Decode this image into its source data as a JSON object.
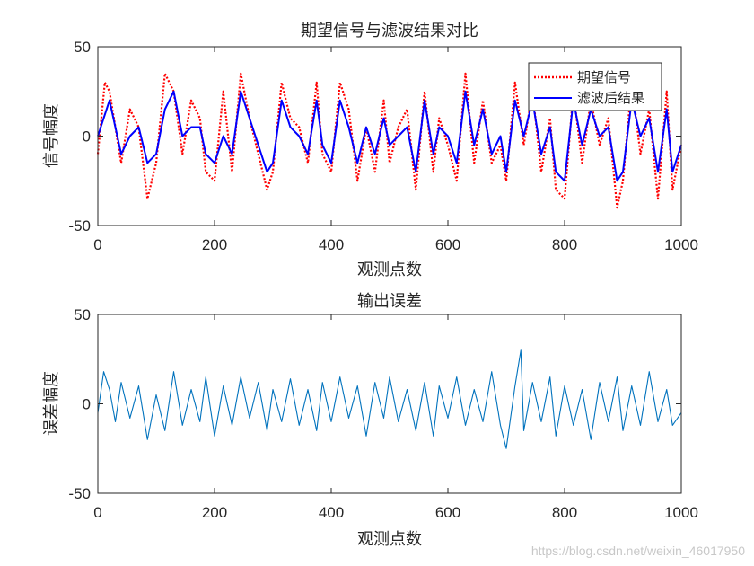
{
  "chart_data": [
    {
      "type": "line",
      "title": "期望信号与滤波结果对比",
      "xlabel": "观测点数",
      "ylabel": "信号幅度",
      "xlim": [
        0,
        1000
      ],
      "ylim": [
        -50,
        50
      ],
      "xticks": [
        "0",
        "200",
        "400",
        "600",
        "800",
        "1000"
      ],
      "yticks": [
        "-50",
        "0",
        "50"
      ],
      "xtick_values": [
        0,
        200,
        400,
        600,
        800,
        1000
      ],
      "ytick_values": [
        -50,
        0,
        50
      ],
      "legend_position": "top-right",
      "series": [
        {
          "name": "期望信号",
          "color": "#ff0000",
          "style": "dotted",
          "x": [
            0,
            12,
            20,
            30,
            40,
            55,
            70,
            85,
            100,
            115,
            130,
            145,
            160,
            175,
            185,
            200,
            215,
            230,
            245,
            260,
            275,
            290,
            300,
            315,
            330,
            345,
            360,
            375,
            385,
            400,
            415,
            430,
            445,
            460,
            475,
            490,
            500,
            515,
            530,
            545,
            560,
            575,
            585,
            600,
            615,
            630,
            645,
            660,
            675,
            690,
            700,
            715,
            730,
            745,
            760,
            775,
            785,
            800,
            815,
            830,
            845,
            860,
            875,
            890,
            900,
            915,
            930,
            945,
            960,
            975,
            985,
            1000
          ],
          "values": [
            -10,
            30,
            25,
            5,
            -15,
            15,
            5,
            -35,
            -15,
            35,
            25,
            -10,
            20,
            10,
            -20,
            -25,
            25,
            -20,
            35,
            10,
            -10,
            -30,
            -20,
            30,
            10,
            5,
            -15,
            30,
            -10,
            -20,
            30,
            15,
            -25,
            5,
            -20,
            20,
            -15,
            5,
            15,
            -30,
            25,
            -20,
            10,
            -5,
            -25,
            35,
            -15,
            20,
            -15,
            -5,
            -25,
            30,
            -5,
            25,
            -20,
            10,
            -30,
            -35,
            25,
            -15,
            20,
            -5,
            10,
            -40,
            -25,
            30,
            -10,
            15,
            -35,
            25,
            -30,
            -5
          ]
        },
        {
          "name": "滤波后结果",
          "color": "#0000ff",
          "style": "solid",
          "x": [
            0,
            10,
            20,
            30,
            40,
            55,
            70,
            85,
            100,
            115,
            130,
            145,
            160,
            175,
            185,
            200,
            215,
            230,
            245,
            260,
            275,
            290,
            300,
            315,
            330,
            345,
            360,
            375,
            385,
            400,
            415,
            430,
            445,
            460,
            475,
            490,
            500,
            515,
            530,
            545,
            560,
            575,
            585,
            600,
            615,
            630,
            645,
            660,
            675,
            690,
            700,
            715,
            730,
            745,
            760,
            775,
            785,
            800,
            815,
            830,
            845,
            860,
            875,
            890,
            900,
            915,
            930,
            945,
            960,
            975,
            985,
            1000
          ],
          "values": [
            0,
            10,
            20,
            5,
            -10,
            0,
            5,
            -15,
            -10,
            15,
            25,
            0,
            5,
            5,
            -10,
            -15,
            0,
            -10,
            25,
            10,
            -5,
            -20,
            -15,
            20,
            5,
            0,
            -10,
            20,
            -5,
            -15,
            20,
            5,
            -15,
            5,
            -10,
            10,
            -5,
            0,
            5,
            -20,
            20,
            -10,
            5,
            0,
            -15,
            25,
            -5,
            15,
            -10,
            0,
            -20,
            20,
            0,
            20,
            -10,
            5,
            -20,
            -25,
            20,
            -5,
            15,
            0,
            5,
            -25,
            -20,
            20,
            0,
            10,
            -20,
            15,
            -20,
            -5
          ]
        }
      ]
    },
    {
      "type": "line",
      "title": "输出误差",
      "xlabel": "观测点数",
      "ylabel": "误差幅度",
      "xlim": [
        0,
        1000
      ],
      "ylim": [
        -50,
        50
      ],
      "xticks": [
        "0",
        "200",
        "400",
        "600",
        "800",
        "1000"
      ],
      "yticks": [
        "-50",
        "0",
        "50"
      ],
      "xtick_values": [
        0,
        200,
        400,
        600,
        800,
        1000
      ],
      "ytick_values": [
        -50,
        0,
        50
      ],
      "series": [
        {
          "name": "误差",
          "color": "#0072bd",
          "style": "solid",
          "x": [
            0,
            10,
            20,
            30,
            40,
            55,
            70,
            85,
            100,
            115,
            130,
            145,
            160,
            175,
            185,
            200,
            215,
            230,
            245,
            260,
            275,
            290,
            300,
            315,
            330,
            345,
            360,
            375,
            385,
            400,
            415,
            430,
            445,
            460,
            475,
            490,
            500,
            515,
            530,
            545,
            560,
            575,
            585,
            600,
            615,
            630,
            645,
            660,
            675,
            690,
            700,
            715,
            725,
            730,
            745,
            760,
            775,
            785,
            800,
            815,
            830,
            845,
            860,
            875,
            890,
            900,
            915,
            930,
            945,
            960,
            975,
            985,
            1000
          ],
          "values": [
            -5,
            18,
            8,
            -10,
            12,
            -8,
            10,
            -20,
            5,
            -15,
            18,
            -12,
            8,
            -10,
            15,
            -18,
            10,
            -12,
            15,
            -8,
            12,
            -15,
            8,
            -10,
            14,
            -12,
            8,
            -15,
            12,
            -10,
            15,
            -8,
            10,
            -18,
            12,
            -8,
            15,
            -10,
            8,
            -15,
            12,
            -18,
            10,
            -8,
            15,
            -12,
            8,
            -10,
            18,
            -12,
            -25,
            10,
            30,
            -15,
            12,
            -10,
            15,
            -18,
            10,
            -12,
            8,
            -20,
            12,
            -10,
            15,
            -15,
            10,
            -12,
            18,
            -10,
            8,
            -12,
            -5
          ]
        }
      ]
    }
  ],
  "watermark": "https://blog.csdn.net/weixin_46017950"
}
